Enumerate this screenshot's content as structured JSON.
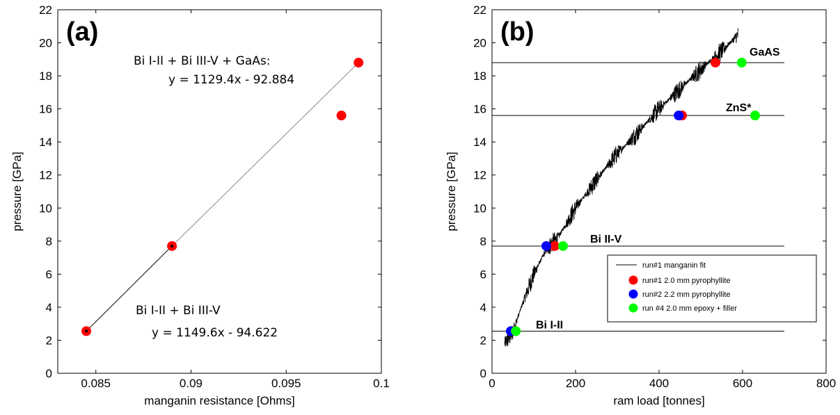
{
  "chart_data": [
    {
      "type": "scatter",
      "panel_label": "(a)",
      "xlabel": "manganin resistance [Ohms]",
      "ylabel": "pressure [GPa]",
      "xlim": [
        0.083,
        0.1
      ],
      "ylim": [
        0,
        22
      ],
      "xticks": [
        0.085,
        0.09,
        0.095,
        0.1
      ],
      "xtick_labels": [
        "0.085",
        "0.09",
        "0.095",
        "0.1"
      ],
      "yticks": [
        0,
        2,
        4,
        6,
        8,
        10,
        12,
        14,
        16,
        18,
        20,
        22
      ],
      "ytick_labels": [
        "0",
        "2",
        "4",
        "6",
        "8",
        "10",
        "12",
        "14",
        "16",
        "18",
        "20",
        "22"
      ],
      "points": {
        "x": [
          0.0845,
          0.089,
          0.0979,
          0.0988
        ],
        "y": [
          2.55,
          7.7,
          15.6,
          18.8
        ],
        "color": "#ff0000"
      },
      "fits": [
        {
          "x": [
            0.0845,
            0.089
          ],
          "y": [
            2.55,
            7.7
          ],
          "color": "#000000"
        },
        {
          "x": [
            0.089,
            0.0988
          ],
          "y": [
            7.7,
            18.8
          ],
          "color": "#888888"
        }
      ],
      "annotations": [
        {
          "line1": "Bi I-II + Bi III-V + GaAs:",
          "line2": "y = 1129.4x - 92.884"
        },
        {
          "line1": "Bi I-II + Bi III-V",
          "line2": "y = 1149.6x - 94.622"
        }
      ]
    },
    {
      "type": "line",
      "panel_label": "(b)",
      "xlabel": "ram load [tonnes]",
      "ylabel": "pressure [GPa]",
      "xlim": [
        0,
        800
      ],
      "ylim": [
        0,
        22
      ],
      "xticks": [
        0,
        200,
        400,
        600,
        800
      ],
      "xtick_labels": [
        "0",
        "200",
        "400",
        "600",
        "800"
      ],
      "yticks": [
        0,
        2,
        4,
        6,
        8,
        10,
        12,
        14,
        16,
        18,
        20,
        22
      ],
      "ytick_labels": [
        "0",
        "2",
        "4",
        "6",
        "8",
        "10",
        "12",
        "14",
        "16",
        "18",
        "20",
        "22"
      ],
      "fit_curve": {
        "name": "run#1 manganin fit",
        "x": [
          30,
          50,
          70,
          100,
          130,
          160,
          200,
          250,
          300,
          350,
          400,
          450,
          500,
          550,
          590
        ],
        "y": [
          1.8,
          2.5,
          4.0,
          6.0,
          7.5,
          8.3,
          10.0,
          11.7,
          13.3,
          14.6,
          16.0,
          17.2,
          18.4,
          19.5,
          20.5
        ]
      },
      "reference_lines": [
        {
          "label": "Bi I-II",
          "y": 2.55
        },
        {
          "label": "Bi II-V",
          "y": 7.7
        },
        {
          "label": "ZnS*",
          "y": 15.6
        },
        {
          "label": "GaAS",
          "y": 18.8
        }
      ],
      "series": [
        {
          "name": "run#1 2.0 mm pyrophyllite",
          "color": "#ff0000",
          "x": [
            50,
            150,
            455,
            535
          ],
          "y": [
            2.55,
            7.7,
            15.6,
            18.8
          ]
        },
        {
          "name": "run#2 2.2 mm pyrophyllite",
          "color": "#0000ff",
          "x": [
            45,
            130,
            447
          ],
          "y": [
            2.55,
            7.7,
            15.6
          ]
        },
        {
          "name": "run #4 2.0 mm epoxy + filler",
          "color": "#00ff00",
          "x": [
            57,
            170,
            598,
            630
          ],
          "y": [
            2.55,
            7.7,
            18.8,
            15.6
          ]
        }
      ],
      "legend_position": "bottom-right"
    }
  ]
}
